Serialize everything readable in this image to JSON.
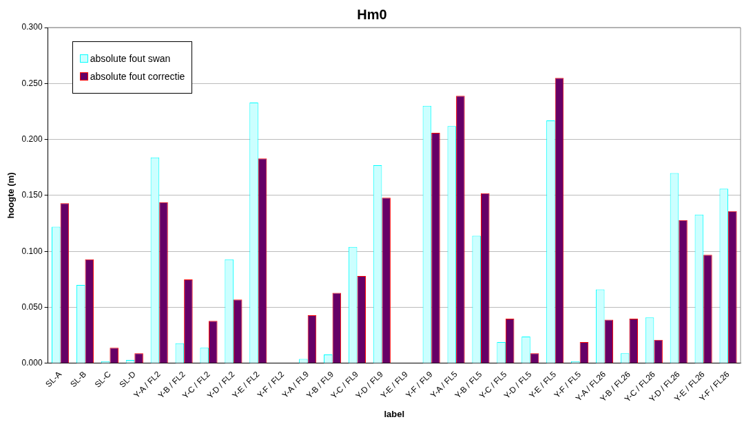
{
  "chart_data": {
    "type": "bar",
    "title": "Hm0",
    "xlabel": "label",
    "ylabel": "hoogte (m)",
    "categories": [
      "SL-A",
      "SL-B",
      "SL-C",
      "SL-D",
      "Y-A / FL2",
      "Y-B / FL2",
      "Y-C / FL2",
      "Y-D / FL2",
      "Y-E / FL2",
      "Y-F / FL2",
      "Y-A / FL9",
      "Y-B / FL9",
      "Y-C / FL9",
      "Y-D / FL9",
      "Y-E / FL9",
      "Y-F / FL9",
      "Y-A / FL5",
      "Y-B / FL5",
      "Y-C / FL5",
      "Y-D / FL5",
      "Y-E / FL5",
      "Y-F / FL5",
      "Y-A / FL26",
      "Y-B / FL26",
      "Y-C / FL26",
      "Y-D / FL26",
      "Y-E / FL26",
      "Y-F / FL26"
    ],
    "series": [
      {
        "name": "absolute fout swan",
        "color": "#ccffff",
        "values": [
          0.122,
          0.07,
          0.002,
          0.003,
          0.184,
          0.018,
          0.014,
          0.093,
          0.233,
          null,
          0.004,
          0.008,
          0.104,
          0.177,
          null,
          0.23,
          0.212,
          0.114,
          0.019,
          0.024,
          0.217,
          0.002,
          0.066,
          0.009,
          0.041,
          0.17,
          0.133,
          0.156
        ]
      },
      {
        "name": "absolute fout correctie",
        "color": "#660066",
        "values": [
          0.143,
          0.093,
          0.014,
          0.009,
          0.144,
          0.075,
          0.038,
          0.057,
          0.183,
          null,
          0.043,
          0.063,
          0.078,
          0.148,
          null,
          0.206,
          0.239,
          0.152,
          0.04,
          0.009,
          0.255,
          0.019,
          0.039,
          0.04,
          0.021,
          0.128,
          0.097,
          0.136
        ]
      }
    ],
    "ylim": [
      0,
      0.3
    ],
    "yticks": [
      {
        "value": 0,
        "label": "0.000"
      },
      {
        "value": 0.05,
        "label": "0.050"
      },
      {
        "value": 0.1,
        "label": "0.100"
      },
      {
        "value": 0.15,
        "label": "0.150"
      },
      {
        "value": 0.2,
        "label": "0.200"
      },
      {
        "value": 0.25,
        "label": "0.250"
      },
      {
        "value": 0.3,
        "label": "0.300"
      }
    ],
    "grid": "y",
    "legend": "top left"
  }
}
